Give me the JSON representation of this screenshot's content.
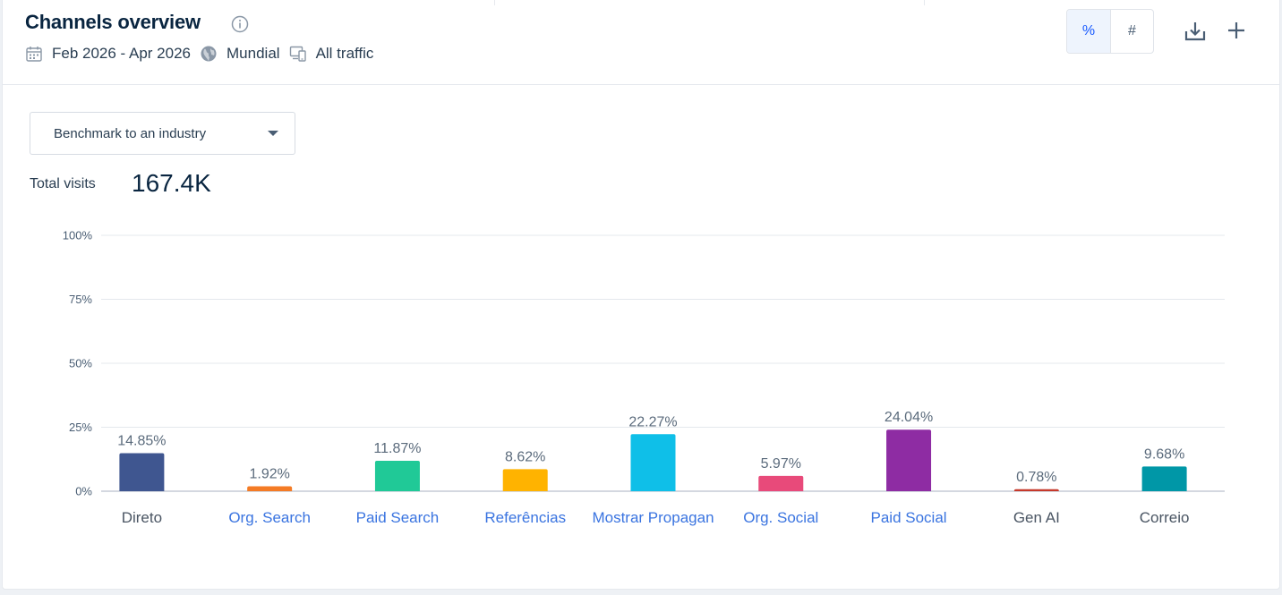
{
  "header": {
    "title": "Channels overview",
    "date_range": "Feb 2026 - Apr 2026",
    "region": "Mundial",
    "traffic": "All traffic"
  },
  "toggle": {
    "percent_label": "%",
    "number_label": "#",
    "active": "percent"
  },
  "benchmark": {
    "label": "Benchmark to an industry"
  },
  "totals": {
    "label": "Total visits",
    "value": "167.4K"
  },
  "chart_data": {
    "type": "bar",
    "categories": [
      "Direto",
      "Org. Search",
      "Paid Search",
      "Referências",
      "Mostrar Propagan",
      "Org. Social",
      "Paid Social",
      "Gen AI",
      "Correio"
    ],
    "values": [
      14.85,
      1.92,
      11.87,
      8.62,
      22.27,
      5.97,
      24.04,
      0.78,
      9.68
    ],
    "value_labels": [
      "14.85%",
      "1.92%",
      "11.87%",
      "8.62%",
      "22.27%",
      "5.97%",
      "24.04%",
      "0.78%",
      "9.68%"
    ],
    "colors": [
      "#3f5690",
      "#f47b25",
      "#20c997",
      "#ffb300",
      "#0fbfe8",
      "#e84a7a",
      "#8e2ca3",
      "#c6392b",
      "#0097a7"
    ],
    "category_link": [
      false,
      true,
      true,
      true,
      true,
      true,
      true,
      false,
      false
    ],
    "y_ticks": [
      "100%",
      "75%",
      "50%",
      "25%",
      "0%"
    ],
    "ylim": [
      0,
      100
    ],
    "grid": true
  }
}
